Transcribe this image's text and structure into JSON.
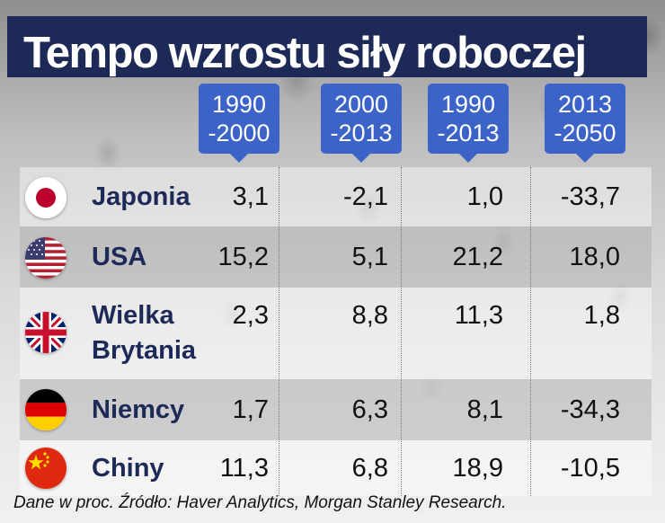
{
  "chart_data": {
    "type": "table",
    "title": "Tempo wzrostu siły roboczej",
    "columns": [
      {
        "line1": "1990",
        "line2": "-2000"
      },
      {
        "line1": "2000",
        "line2": "-2013"
      },
      {
        "line1": "1990",
        "line2": "-2013"
      },
      {
        "line1": "2013",
        "line2": "-2050"
      }
    ],
    "rows": [
      {
        "country": "Japonia",
        "flag": "japan-flag-icon",
        "values": [
          "3,1",
          "-2,1",
          "1,0",
          "-33,7"
        ]
      },
      {
        "country": "USA",
        "flag": "usa-flag-icon",
        "values": [
          "15,2",
          "5,1",
          "21,2",
          "18,0"
        ]
      },
      {
        "country_line1": "Wielka",
        "country_line2": "Brytania",
        "flag": "uk-flag-icon",
        "values": [
          "2,3",
          "8,8",
          "11,3",
          "1,8"
        ]
      },
      {
        "country": "Niemcy",
        "flag": "germany-flag-icon",
        "values": [
          "1,7",
          "6,3",
          "8,1",
          "-34,3"
        ]
      },
      {
        "country": "Chiny",
        "flag": "china-flag-icon",
        "values": [
          "11,3",
          "6,8",
          "18,9",
          "-10,5"
        ]
      }
    ],
    "source": "Dane w proc. Źródło: Haver Analytics, Morgan Stanley Research."
  },
  "colors": {
    "title_bg": "#1d2a57",
    "header_bg": "#3c63c8",
    "country_text": "#1d2a57"
  }
}
